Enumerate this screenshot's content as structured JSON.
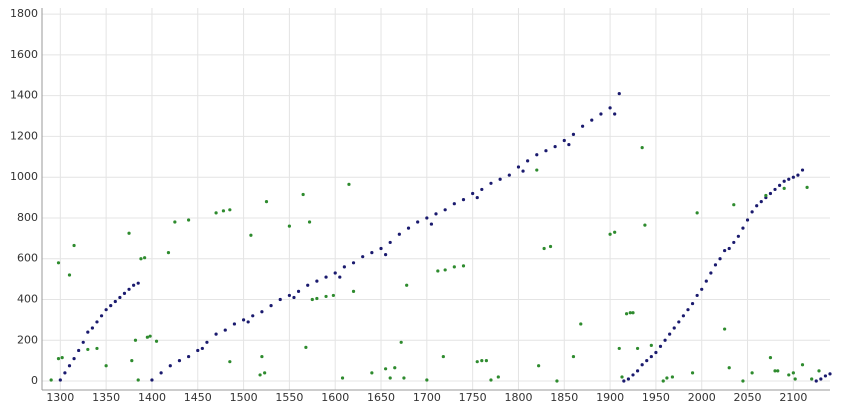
{
  "chart_data": {
    "type": "scatter",
    "xlim": [
      1280,
      2140
    ],
    "ylim": [
      -44,
      1830
    ],
    "xticks": [
      1300,
      1350,
      1400,
      1450,
      1500,
      1550,
      1600,
      1650,
      1700,
      1750,
      1800,
      1850,
      1900,
      1950,
      2000,
      2050,
      2100
    ],
    "yticks": [
      0,
      200,
      400,
      600,
      800,
      1000,
      1200,
      1400,
      1600,
      1800
    ],
    "grid": true,
    "series": [
      {
        "color": "#1a1a6e",
        "x": [
          1300,
          1305,
          1310,
          1315,
          1320,
          1325,
          1330,
          1335,
          1340,
          1345,
          1350,
          1355,
          1360,
          1365,
          1370,
          1375,
          1380,
          1385,
          1400,
          1410,
          1420,
          1430,
          1440,
          1450,
          1460,
          1470,
          1480,
          1490,
          1500,
          1510,
          1520,
          1530,
          1540,
          1550,
          1560,
          1570,
          1580,
          1590,
          1600,
          1610,
          1620,
          1630,
          1640,
          1650,
          1660,
          1670,
          1680,
          1690,
          1700,
          1710,
          1720,
          1730,
          1740,
          1750,
          1760,
          1770,
          1780,
          1790,
          1800,
          1810,
          1820,
          1830,
          1840,
          1850,
          1860,
          1870,
          1880,
          1890,
          1900,
          1910,
          1455,
          1505,
          1555,
          1605,
          1655,
          1705,
          1755,
          1805,
          1855,
          1905,
          1915,
          1920,
          1925,
          1930,
          1935,
          1940,
          1945,
          1950,
          1955,
          1960,
          1965,
          1970,
          1975,
          1980,
          1985,
          1990,
          1995,
          2000,
          2005,
          2010,
          2015,
          2020,
          2025,
          2030,
          2035,
          2040,
          2045,
          2050,
          2055,
          2060,
          2065,
          2070,
          2075,
          2080,
          2085,
          2090,
          2095,
          2100,
          2105,
          2110,
          2125,
          2130,
          2135,
          2140
        ],
        "y": [
          5,
          40,
          75,
          110,
          150,
          190,
          240,
          260,
          290,
          320,
          350,
          370,
          390,
          410,
          430,
          450,
          470,
          480,
          5,
          40,
          75,
          100,
          120,
          150,
          190,
          230,
          250,
          280,
          300,
          320,
          340,
          370,
          400,
          420,
          440,
          470,
          490,
          510,
          530,
          560,
          580,
          610,
          630,
          650,
          680,
          720,
          750,
          780,
          800,
          820,
          840,
          870,
          890,
          920,
          940,
          970,
          990,
          1010,
          1050,
          1080,
          1110,
          1130,
          1150,
          1180,
          1210,
          1250,
          1280,
          1310,
          1340,
          1410,
          160,
          290,
          410,
          510,
          620,
          770,
          900,
          1030,
          1160,
          1310,
          0,
          10,
          30,
          50,
          80,
          100,
          120,
          140,
          170,
          200,
          230,
          260,
          290,
          320,
          350,
          380,
          420,
          450,
          490,
          530,
          570,
          600,
          640,
          650,
          680,
          710,
          750,
          790,
          830,
          860,
          880,
          900,
          920,
          940,
          960,
          980,
          990,
          1000,
          1010,
          1035,
          0,
          10,
          25,
          35
        ]
      },
      {
        "color": "#2e8b2e",
        "x": [
          1290,
          1298,
          1298,
          1302,
          1310,
          1315,
          1330,
          1340,
          1350,
          1375,
          1378,
          1382,
          1385,
          1388,
          1392,
          1395,
          1398,
          1405,
          1418,
          1425,
          1440,
          1470,
          1478,
          1485,
          1485,
          1508,
          1518,
          1520,
          1523,
          1525,
          1550,
          1565,
          1568,
          1572,
          1575,
          1580,
          1590,
          1598,
          1608,
          1615,
          1620,
          1640,
          1655,
          1660,
          1665,
          1672,
          1675,
          1678,
          1700,
          1712,
          1718,
          1720,
          1730,
          1740,
          1755,
          1760,
          1765,
          1770,
          1778,
          1820,
          1822,
          1828,
          1835,
          1842,
          1860,
          1868,
          1900,
          1905,
          1910,
          1913,
          1918,
          1922,
          1925,
          1930,
          1935,
          1938,
          1945,
          1958,
          1962,
          1968,
          1990,
          1995,
          2025,
          2030,
          2035,
          2045,
          2055,
          2070,
          2075,
          2080,
          2083,
          2090,
          2095,
          2100,
          2102,
          2110,
          2115,
          2120,
          2128
        ],
        "y": [
          5,
          580,
          110,
          115,
          520,
          665,
          155,
          160,
          75,
          725,
          100,
          200,
          5,
          600,
          605,
          215,
          220,
          195,
          630,
          780,
          790,
          825,
          835,
          840,
          95,
          715,
          30,
          120,
          40,
          880,
          760,
          915,
          165,
          780,
          400,
          405,
          415,
          420,
          15,
          965,
          440,
          40,
          60,
          15,
          65,
          190,
          15,
          470,
          5,
          540,
          120,
          545,
          560,
          565,
          95,
          100,
          100,
          5,
          20,
          1035,
          75,
          650,
          660,
          0,
          120,
          280,
          720,
          730,
          160,
          20,
          330,
          335,
          335,
          160,
          1145,
          765,
          175,
          0,
          15,
          20,
          40,
          825,
          255,
          65,
          865,
          0,
          40,
          910,
          115,
          50,
          50,
          945,
          30,
          40,
          10,
          80,
          950,
          10,
          50
        ]
      }
    ]
  }
}
